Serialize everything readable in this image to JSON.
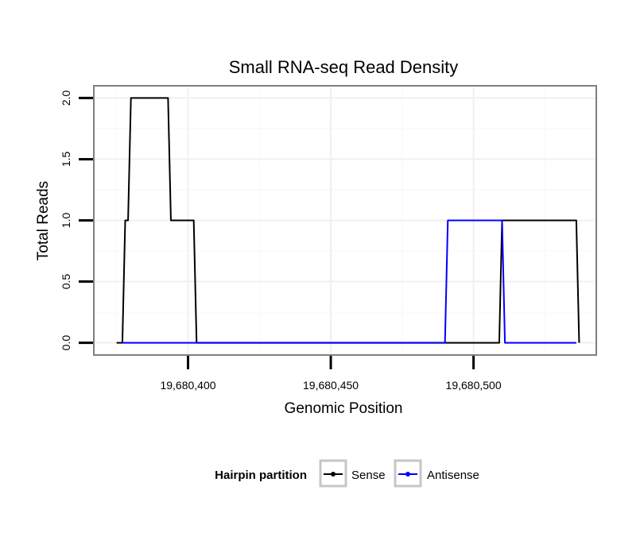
{
  "chart_data": {
    "type": "line",
    "title": "Small RNA-seq Read Density",
    "xlabel": "Genomic Position",
    "ylabel": "Total Reads",
    "xlim": [
      19680367,
      19680543
    ],
    "ylim": [
      -0.1,
      2.1
    ],
    "x_ticks": [
      19680400,
      19680450,
      19680500
    ],
    "x_tick_labels": [
      "19,680,400",
      "19,680,450",
      "19,680,500"
    ],
    "y_ticks": [
      0.0,
      0.5,
      1.0,
      1.5,
      2.0
    ],
    "y_tick_labels": [
      "0.0",
      "0.5",
      "1.0",
      "1.5",
      "2.0"
    ],
    "grid": true,
    "legend_position": "bottom",
    "legend_title": "Hairpin partition",
    "series": [
      {
        "name": "Sense",
        "color": "#000000",
        "x": [
          19680375,
          19680377,
          19680378,
          19680379,
          19680380,
          19680393,
          19680394,
          19680402,
          19680403,
          19680509,
          19680510,
          19680536,
          19680537
        ],
        "y": [
          0,
          0,
          1,
          1,
          2,
          2,
          1,
          1,
          0,
          0,
          1,
          1,
          0
        ]
      },
      {
        "name": "Antisense",
        "color": "#0000ff",
        "x": [
          19680377,
          19680403,
          19680490,
          19680491,
          19680510,
          19680511,
          19680536
        ],
        "y": [
          0,
          0,
          0,
          1,
          1,
          0,
          0
        ]
      }
    ]
  }
}
